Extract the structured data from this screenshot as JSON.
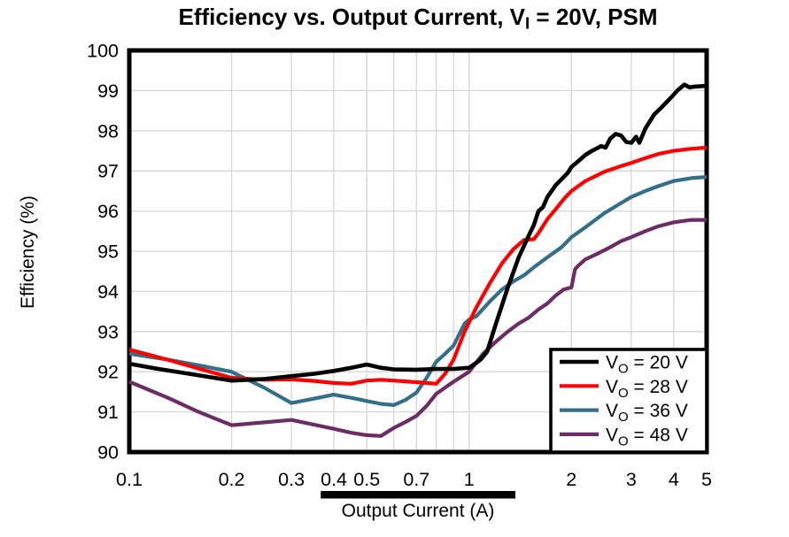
{
  "title": {
    "pre": "Efficiency vs. Output Current, V",
    "sub": "I",
    "post": " = 20V, PSM"
  },
  "chart_data": {
    "type": "line",
    "title": "Efficiency vs. Output Current, VI = 20V, PSM",
    "xlabel": "Output Current (A)",
    "ylabel": "Efficiency (%)",
    "x_axis": {
      "scale": "log",
      "min": 0.1,
      "max": 5,
      "gridlines": [
        0.2,
        0.3,
        0.4,
        0.5,
        0.6,
        0.7,
        0.8,
        0.9,
        1,
        2,
        3,
        4
      ],
      "ticks": [
        {
          "value": 0.1,
          "label": "0.1"
        },
        {
          "value": 0.2,
          "label": "0.2"
        },
        {
          "value": 0.3,
          "label": "0.3"
        },
        {
          "value": 0.4,
          "label": "0.4"
        },
        {
          "value": 0.5,
          "label": "0.5"
        },
        {
          "value": 0.7,
          "label": "0.7"
        },
        {
          "value": 1,
          "label": "1"
        },
        {
          "value": 2,
          "label": "2"
        },
        {
          "value": 3,
          "label": "3"
        },
        {
          "value": 4,
          "label": "4"
        },
        {
          "value": 5,
          "label": "5"
        }
      ]
    },
    "y_axis": {
      "scale": "linear",
      "min": 90,
      "max": 100,
      "gridlines": [
        91,
        92,
        93,
        94,
        95,
        96,
        97,
        98,
        99
      ],
      "ticks": [
        {
          "value": 90,
          "label": "90"
        },
        {
          "value": 91,
          "label": "91"
        },
        {
          "value": 92,
          "label": "92"
        },
        {
          "value": 93,
          "label": "93"
        },
        {
          "value": 94,
          "label": "94"
        },
        {
          "value": 95,
          "label": "95"
        },
        {
          "value": 96,
          "label": "96"
        },
        {
          "value": 97,
          "label": "97"
        },
        {
          "value": 98,
          "label": "98"
        },
        {
          "value": 99,
          "label": "99"
        },
        {
          "value": 100,
          "label": "100"
        }
      ]
    },
    "grid_color": "#D6D6D6",
    "border_color": "#000000",
    "legend_position": "bottom-right",
    "annotation_bar": {
      "x_from": 0.366,
      "x_to": 1.368,
      "color": "#000000"
    },
    "series": [
      {
        "name": "VO = 20 V",
        "label_pre": "V",
        "label_sub": "O",
        "label_post": " = 20 V",
        "color": "#000000",
        "stroke_width": 4.6,
        "points": [
          [
            0.1,
            92.2
          ],
          [
            0.12,
            92.08
          ],
          [
            0.15,
            91.95
          ],
          [
            0.2,
            91.78
          ],
          [
            0.25,
            91.82
          ],
          [
            0.3,
            91.89
          ],
          [
            0.35,
            91.95
          ],
          [
            0.4,
            92.02
          ],
          [
            0.45,
            92.1
          ],
          [
            0.5,
            92.18
          ],
          [
            0.55,
            92.1
          ],
          [
            0.6,
            92.06
          ],
          [
            0.7,
            92.05
          ],
          [
            0.8,
            92.07
          ],
          [
            0.9,
            92.07
          ],
          [
            1.0,
            92.1
          ],
          [
            1.08,
            92.3
          ],
          [
            1.13,
            92.5
          ],
          [
            1.2,
            93.2
          ],
          [
            1.3,
            94.1
          ],
          [
            1.4,
            94.85
          ],
          [
            1.5,
            95.4
          ],
          [
            1.55,
            95.65
          ],
          [
            1.6,
            96.0
          ],
          [
            1.65,
            96.1
          ],
          [
            1.7,
            96.35
          ],
          [
            1.8,
            96.65
          ],
          [
            1.9,
            96.85
          ],
          [
            1.95,
            96.95
          ],
          [
            2.0,
            97.1
          ],
          [
            2.1,
            97.25
          ],
          [
            2.2,
            97.4
          ],
          [
            2.3,
            97.5
          ],
          [
            2.45,
            97.62
          ],
          [
            2.52,
            97.58
          ],
          [
            2.6,
            97.8
          ],
          [
            2.7,
            97.92
          ],
          [
            2.8,
            97.88
          ],
          [
            2.9,
            97.72
          ],
          [
            3.0,
            97.7
          ],
          [
            3.1,
            97.85
          ],
          [
            3.17,
            97.7
          ],
          [
            3.3,
            98.05
          ],
          [
            3.5,
            98.4
          ],
          [
            3.7,
            98.6
          ],
          [
            3.9,
            98.8
          ],
          [
            4.1,
            99.0
          ],
          [
            4.3,
            99.15
          ],
          [
            4.45,
            99.08
          ],
          [
            4.6,
            99.1
          ],
          [
            5.0,
            99.12
          ]
        ]
      },
      {
        "name": "VO = 28 V",
        "label_pre": "V",
        "label_sub": "O",
        "label_post": " = 28 V",
        "color": "#FF0000",
        "stroke_width": 4.2,
        "points": [
          [
            0.1,
            92.55
          ],
          [
            0.13,
            92.3
          ],
          [
            0.16,
            92.08
          ],
          [
            0.2,
            91.85
          ],
          [
            0.25,
            91.8
          ],
          [
            0.3,
            91.81
          ],
          [
            0.35,
            91.77
          ],
          [
            0.4,
            91.72
          ],
          [
            0.45,
            91.7
          ],
          [
            0.5,
            91.78
          ],
          [
            0.55,
            91.8
          ],
          [
            0.6,
            91.78
          ],
          [
            0.65,
            91.76
          ],
          [
            0.7,
            91.74
          ],
          [
            0.75,
            91.72
          ],
          [
            0.8,
            91.7
          ],
          [
            0.85,
            91.95
          ],
          [
            0.9,
            92.3
          ],
          [
            0.97,
            93.0
          ],
          [
            1.05,
            93.6
          ],
          [
            1.15,
            94.2
          ],
          [
            1.25,
            94.7
          ],
          [
            1.35,
            95.05
          ],
          [
            1.45,
            95.28
          ],
          [
            1.55,
            95.3
          ],
          [
            1.6,
            95.45
          ],
          [
            1.7,
            95.8
          ],
          [
            1.8,
            96.05
          ],
          [
            1.9,
            96.3
          ],
          [
            2.0,
            96.5
          ],
          [
            2.2,
            96.75
          ],
          [
            2.5,
            96.98
          ],
          [
            2.8,
            97.12
          ],
          [
            3.0,
            97.2
          ],
          [
            3.3,
            97.32
          ],
          [
            3.6,
            97.42
          ],
          [
            4.0,
            97.5
          ],
          [
            4.5,
            97.55
          ],
          [
            5.0,
            97.58
          ]
        ]
      },
      {
        "name": "VO = 36 V",
        "label_pre": "V",
        "label_sub": "O",
        "label_post": " = 36 V",
        "color": "#336F88",
        "stroke_width": 4.2,
        "points": [
          [
            0.1,
            92.45
          ],
          [
            0.13,
            92.3
          ],
          [
            0.16,
            92.16
          ],
          [
            0.2,
            92.0
          ],
          [
            0.25,
            91.6
          ],
          [
            0.3,
            91.22
          ],
          [
            0.35,
            91.33
          ],
          [
            0.4,
            91.43
          ],
          [
            0.45,
            91.35
          ],
          [
            0.5,
            91.27
          ],
          [
            0.55,
            91.2
          ],
          [
            0.6,
            91.17
          ],
          [
            0.65,
            91.3
          ],
          [
            0.7,
            91.48
          ],
          [
            0.75,
            91.85
          ],
          [
            0.8,
            92.25
          ],
          [
            0.85,
            92.45
          ],
          [
            0.9,
            92.65
          ],
          [
            0.97,
            93.2
          ],
          [
            1.0,
            93.3
          ],
          [
            1.05,
            93.38
          ],
          [
            1.15,
            93.75
          ],
          [
            1.25,
            94.05
          ],
          [
            1.35,
            94.25
          ],
          [
            1.45,
            94.4
          ],
          [
            1.55,
            94.6
          ],
          [
            1.7,
            94.85
          ],
          [
            1.87,
            95.1
          ],
          [
            2.0,
            95.35
          ],
          [
            2.2,
            95.6
          ],
          [
            2.5,
            95.95
          ],
          [
            2.8,
            96.2
          ],
          [
            3.0,
            96.35
          ],
          [
            3.3,
            96.5
          ],
          [
            3.6,
            96.62
          ],
          [
            4.0,
            96.75
          ],
          [
            4.5,
            96.82
          ],
          [
            5.0,
            96.85
          ]
        ]
      },
      {
        "name": "VO = 48 V",
        "label_pre": "V",
        "label_sub": "O",
        "label_post": " = 48 V",
        "color": "#6B2D63",
        "stroke_width": 4.2,
        "points": [
          [
            0.1,
            91.75
          ],
          [
            0.13,
            91.35
          ],
          [
            0.16,
            91.0
          ],
          [
            0.2,
            90.67
          ],
          [
            0.25,
            90.74
          ],
          [
            0.3,
            90.8
          ],
          [
            0.35,
            90.68
          ],
          [
            0.4,
            90.58
          ],
          [
            0.45,
            90.48
          ],
          [
            0.5,
            90.42
          ],
          [
            0.55,
            90.4
          ],
          [
            0.6,
            90.6
          ],
          [
            0.65,
            90.75
          ],
          [
            0.7,
            90.9
          ],
          [
            0.75,
            91.15
          ],
          [
            0.8,
            91.45
          ],
          [
            0.9,
            91.75
          ],
          [
            1.0,
            92.0
          ],
          [
            1.1,
            92.45
          ],
          [
            1.2,
            92.75
          ],
          [
            1.3,
            93.0
          ],
          [
            1.4,
            93.2
          ],
          [
            1.5,
            93.35
          ],
          [
            1.6,
            93.55
          ],
          [
            1.7,
            93.7
          ],
          [
            1.8,
            93.9
          ],
          [
            1.9,
            94.05
          ],
          [
            2.0,
            94.1
          ],
          [
            2.05,
            94.55
          ],
          [
            2.1,
            94.65
          ],
          [
            2.2,
            94.8
          ],
          [
            2.4,
            94.95
          ],
          [
            2.6,
            95.1
          ],
          [
            2.8,
            95.25
          ],
          [
            3.0,
            95.35
          ],
          [
            3.3,
            95.5
          ],
          [
            3.6,
            95.62
          ],
          [
            4.0,
            95.72
          ],
          [
            4.5,
            95.78
          ],
          [
            5.0,
            95.78
          ]
        ]
      }
    ]
  },
  "labels": {
    "xlabel": "Output Current (A)",
    "ylabel": "Efficiency (%)"
  }
}
